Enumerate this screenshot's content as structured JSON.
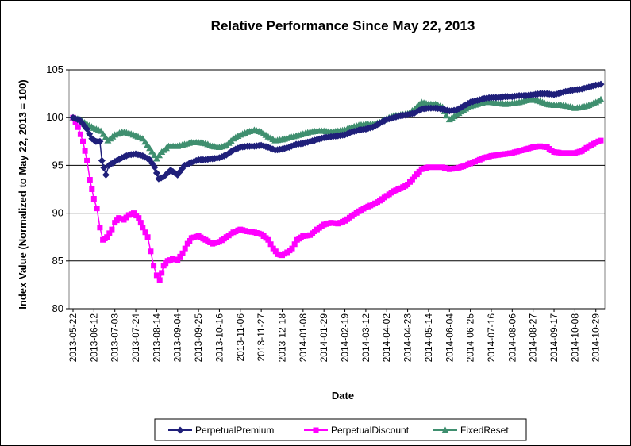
{
  "chart_data": {
    "type": "line",
    "title": "Relative Performance Since May 22, 2013",
    "xlabel": "Date",
    "ylabel": "Index Value (Normalized to May 22, 2013 = 100)",
    "ylim": [
      80,
      105
    ],
    "yticks": [
      "80",
      "85",
      "90",
      "95",
      "100",
      "105"
    ],
    "xticks": [
      "2013-05-22",
      "2013-06-12",
      "2013-07-03",
      "2013-07-24",
      "2013-08-14",
      "2013-09-04",
      "2013-09-25",
      "2013-10-16",
      "2013-11-06",
      "2013-11-27",
      "2013-12-18",
      "2014-01-08",
      "2014-01-29",
      "2014-02-19",
      "2014-03-12",
      "2014-04-02",
      "2014-04-23",
      "2014-05-14",
      "2014-06-04",
      "2014-06-25",
      "2014-07-16",
      "2014-08-06",
      "2014-08-27",
      "2014-09-17",
      "2014-10-08",
      "2014-10-29"
    ],
    "grid": "horizontal",
    "legend_position": "bottom",
    "series": [
      {
        "name": "PerpetualPremium",
        "color": "#1f1f7a",
        "marker": "diamond",
        "points": [
          [
            "2013-05-22",
            100
          ],
          [
            "2013-05-29",
            99.7
          ],
          [
            "2013-06-05",
            98.8
          ],
          [
            "2013-06-10",
            97.8
          ],
          [
            "2013-06-14",
            97.5
          ],
          [
            "2013-06-18",
            97.5
          ],
          [
            "2013-06-20",
            95.5
          ],
          [
            "2013-06-24",
            94.0
          ],
          [
            "2013-06-27",
            95.0
          ],
          [
            "2013-07-03",
            95.4
          ],
          [
            "2013-07-10",
            95.8
          ],
          [
            "2013-07-17",
            96.1
          ],
          [
            "2013-07-24",
            96.2
          ],
          [
            "2013-07-31",
            96.0
          ],
          [
            "2013-08-07",
            95.6
          ],
          [
            "2013-08-12",
            94.8
          ],
          [
            "2013-08-16",
            93.6
          ],
          [
            "2013-08-21",
            93.8
          ],
          [
            "2013-08-28",
            94.5
          ],
          [
            "2013-09-04",
            94.0
          ],
          [
            "2013-09-11",
            95.0
          ],
          [
            "2013-09-18",
            95.3
          ],
          [
            "2013-09-25",
            95.6
          ],
          [
            "2013-10-02",
            95.6
          ],
          [
            "2013-10-09",
            95.7
          ],
          [
            "2013-10-16",
            95.8
          ],
          [
            "2013-10-23",
            96.1
          ],
          [
            "2013-10-30",
            96.6
          ],
          [
            "2013-11-06",
            96.9
          ],
          [
            "2013-11-13",
            97.0
          ],
          [
            "2013-11-20",
            97.0
          ],
          [
            "2013-11-27",
            97.1
          ],
          [
            "2013-12-04",
            96.9
          ],
          [
            "2013-12-11",
            96.6
          ],
          [
            "2013-12-18",
            96.7
          ],
          [
            "2013-12-25",
            96.9
          ],
          [
            "2014-01-01",
            97.2
          ],
          [
            "2014-01-08",
            97.3
          ],
          [
            "2014-01-15",
            97.5
          ],
          [
            "2014-01-22",
            97.7
          ],
          [
            "2014-01-29",
            97.9
          ],
          [
            "2014-02-05",
            98.0
          ],
          [
            "2014-02-12",
            98.1
          ],
          [
            "2014-02-19",
            98.2
          ],
          [
            "2014-02-26",
            98.5
          ],
          [
            "2014-03-05",
            98.7
          ],
          [
            "2014-03-12",
            98.8
          ],
          [
            "2014-03-19",
            99.0
          ],
          [
            "2014-03-26",
            99.4
          ],
          [
            "2014-04-02",
            99.8
          ],
          [
            "2014-04-09",
            100.0
          ],
          [
            "2014-04-16",
            100.2
          ],
          [
            "2014-04-23",
            100.3
          ],
          [
            "2014-04-30",
            100.5
          ],
          [
            "2014-05-07",
            100.9
          ],
          [
            "2014-05-14",
            101.0
          ],
          [
            "2014-05-21",
            101.0
          ],
          [
            "2014-05-28",
            100.9
          ],
          [
            "2014-06-04",
            100.7
          ],
          [
            "2014-06-11",
            100.8
          ],
          [
            "2014-06-18",
            101.2
          ],
          [
            "2014-06-25",
            101.6
          ],
          [
            "2014-07-02",
            101.8
          ],
          [
            "2014-07-09",
            102.0
          ],
          [
            "2014-07-16",
            102.1
          ],
          [
            "2014-07-23",
            102.1
          ],
          [
            "2014-07-30",
            102.2
          ],
          [
            "2014-08-06",
            102.2
          ],
          [
            "2014-08-13",
            102.3
          ],
          [
            "2014-08-20",
            102.3
          ],
          [
            "2014-08-27",
            102.4
          ],
          [
            "2014-09-03",
            102.5
          ],
          [
            "2014-09-10",
            102.5
          ],
          [
            "2014-09-17",
            102.4
          ],
          [
            "2014-09-24",
            102.6
          ],
          [
            "2014-10-01",
            102.8
          ],
          [
            "2014-10-08",
            102.9
          ],
          [
            "2014-10-15",
            103.0
          ],
          [
            "2014-10-22",
            103.2
          ],
          [
            "2014-10-29",
            103.4
          ],
          [
            "2014-11-03",
            103.5
          ]
        ]
      },
      {
        "name": "PerpetualDiscount",
        "color": "#ff00ff",
        "marker": "square",
        "points": [
          [
            "2013-05-22",
            100
          ],
          [
            "2013-05-27",
            99.0
          ],
          [
            "2013-06-01",
            97.5
          ],
          [
            "2013-06-05",
            95.5
          ],
          [
            "2013-06-08",
            93.5
          ],
          [
            "2013-06-12",
            91.5
          ],
          [
            "2013-06-15",
            90.5
          ],
          [
            "2013-06-18",
            88.5
          ],
          [
            "2013-06-21",
            87.2
          ],
          [
            "2013-06-25",
            87.5
          ],
          [
            "2013-06-30",
            88.3
          ],
          [
            "2013-07-03",
            89.0
          ],
          [
            "2013-07-07",
            89.5
          ],
          [
            "2013-07-12",
            89.3
          ],
          [
            "2013-07-17",
            89.8
          ],
          [
            "2013-07-22",
            90.0
          ],
          [
            "2013-07-27",
            89.5
          ],
          [
            "2013-07-31",
            88.5
          ],
          [
            "2013-08-05",
            87.5
          ],
          [
            "2013-08-08",
            86.0
          ],
          [
            "2013-08-11",
            84.5
          ],
          [
            "2013-08-14",
            83.5
          ],
          [
            "2013-08-17",
            83.0
          ],
          [
            "2013-08-21",
            84.5
          ],
          [
            "2013-08-25",
            85.0
          ],
          [
            "2013-08-30",
            85.2
          ],
          [
            "2013-09-04",
            85.1
          ],
          [
            "2013-09-09",
            85.8
          ],
          [
            "2013-09-14",
            86.8
          ],
          [
            "2013-09-18",
            87.4
          ],
          [
            "2013-09-25",
            87.6
          ],
          [
            "2013-10-02",
            87.2
          ],
          [
            "2013-10-09",
            86.8
          ],
          [
            "2013-10-16",
            87.0
          ],
          [
            "2013-10-23",
            87.5
          ],
          [
            "2013-10-30",
            88.0
          ],
          [
            "2013-11-06",
            88.3
          ],
          [
            "2013-11-13",
            88.1
          ],
          [
            "2013-11-20",
            88.0
          ],
          [
            "2013-11-27",
            87.8
          ],
          [
            "2013-12-04",
            87.2
          ],
          [
            "2013-12-09",
            86.3
          ],
          [
            "2013-12-14",
            85.7
          ],
          [
            "2013-12-18",
            85.6
          ],
          [
            "2013-12-23",
            85.9
          ],
          [
            "2013-12-28",
            86.3
          ],
          [
            "2014-01-02",
            87.2
          ],
          [
            "2014-01-08",
            87.6
          ],
          [
            "2014-01-15",
            87.7
          ],
          [
            "2014-01-22",
            88.3
          ],
          [
            "2014-01-29",
            88.8
          ],
          [
            "2014-02-05",
            89.0
          ],
          [
            "2014-02-12",
            88.9
          ],
          [
            "2014-02-19",
            89.2
          ],
          [
            "2014-02-26",
            89.7
          ],
          [
            "2014-03-05",
            90.2
          ],
          [
            "2014-03-12",
            90.6
          ],
          [
            "2014-03-19",
            90.9
          ],
          [
            "2014-03-26",
            91.3
          ],
          [
            "2014-04-02",
            91.8
          ],
          [
            "2014-04-09",
            92.3
          ],
          [
            "2014-04-16",
            92.6
          ],
          [
            "2014-04-23",
            93.0
          ],
          [
            "2014-04-30",
            93.8
          ],
          [
            "2014-05-07",
            94.6
          ],
          [
            "2014-05-14",
            94.8
          ],
          [
            "2014-05-21",
            94.8
          ],
          [
            "2014-05-28",
            94.8
          ],
          [
            "2014-06-04",
            94.6
          ],
          [
            "2014-06-11",
            94.7
          ],
          [
            "2014-06-18",
            94.9
          ],
          [
            "2014-06-25",
            95.2
          ],
          [
            "2014-07-02",
            95.5
          ],
          [
            "2014-07-09",
            95.8
          ],
          [
            "2014-07-16",
            96.0
          ],
          [
            "2014-07-23",
            96.1
          ],
          [
            "2014-07-30",
            96.2
          ],
          [
            "2014-08-06",
            96.3
          ],
          [
            "2014-08-13",
            96.5
          ],
          [
            "2014-08-20",
            96.7
          ],
          [
            "2014-08-27",
            96.9
          ],
          [
            "2014-09-03",
            97.0
          ],
          [
            "2014-09-10",
            96.9
          ],
          [
            "2014-09-17",
            96.4
          ],
          [
            "2014-09-24",
            96.3
          ],
          [
            "2014-10-01",
            96.3
          ],
          [
            "2014-10-08",
            96.3
          ],
          [
            "2014-10-15",
            96.5
          ],
          [
            "2014-10-22",
            97.0
          ],
          [
            "2014-10-29",
            97.4
          ],
          [
            "2014-11-03",
            97.6
          ]
        ]
      },
      {
        "name": "FixedReset",
        "color": "#3f8f6f",
        "marker": "triangle",
        "points": [
          [
            "2013-05-22",
            100
          ],
          [
            "2013-05-29",
            99.8
          ],
          [
            "2013-06-05",
            99.3
          ],
          [
            "2013-06-12",
            98.9
          ],
          [
            "2013-06-19",
            98.6
          ],
          [
            "2013-06-26",
            97.6
          ],
          [
            "2013-07-03",
            98.2
          ],
          [
            "2013-07-10",
            98.5
          ],
          [
            "2013-07-17",
            98.4
          ],
          [
            "2013-07-24",
            98.1
          ],
          [
            "2013-07-31",
            97.8
          ],
          [
            "2013-08-07",
            96.8
          ],
          [
            "2013-08-14",
            95.7
          ],
          [
            "2013-08-19",
            96.4
          ],
          [
            "2013-08-26",
            97.0
          ],
          [
            "2013-09-04",
            97.0
          ],
          [
            "2013-09-11",
            97.2
          ],
          [
            "2013-09-18",
            97.4
          ],
          [
            "2013-09-25",
            97.4
          ],
          [
            "2013-10-02",
            97.3
          ],
          [
            "2013-10-09",
            97.0
          ],
          [
            "2013-10-16",
            96.9
          ],
          [
            "2013-10-23",
            97.1
          ],
          [
            "2013-10-30",
            97.8
          ],
          [
            "2013-11-06",
            98.2
          ],
          [
            "2013-11-13",
            98.5
          ],
          [
            "2013-11-20",
            98.7
          ],
          [
            "2013-11-27",
            98.5
          ],
          [
            "2013-12-04",
            98.0
          ],
          [
            "2013-12-11",
            97.6
          ],
          [
            "2013-12-18",
            97.7
          ],
          [
            "2013-12-25",
            97.9
          ],
          [
            "2014-01-01",
            98.1
          ],
          [
            "2014-01-08",
            98.3
          ],
          [
            "2014-01-15",
            98.5
          ],
          [
            "2014-01-22",
            98.6
          ],
          [
            "2014-01-29",
            98.6
          ],
          [
            "2014-02-05",
            98.5
          ],
          [
            "2014-02-12",
            98.6
          ],
          [
            "2014-02-19",
            98.7
          ],
          [
            "2014-02-26",
            99.0
          ],
          [
            "2014-03-05",
            99.2
          ],
          [
            "2014-03-12",
            99.3
          ],
          [
            "2014-03-19",
            99.3
          ],
          [
            "2014-03-26",
            99.5
          ],
          [
            "2014-04-02",
            99.9
          ],
          [
            "2014-04-09",
            100.2
          ],
          [
            "2014-04-16",
            100.3
          ],
          [
            "2014-04-23",
            100.4
          ],
          [
            "2014-04-30",
            100.9
          ],
          [
            "2014-05-07",
            101.6
          ],
          [
            "2014-05-14",
            101.4
          ],
          [
            "2014-05-21",
            101.4
          ],
          [
            "2014-05-28",
            101.1
          ],
          [
            "2014-06-01",
            100.2
          ],
          [
            "2014-06-04",
            99.8
          ],
          [
            "2014-06-11",
            100.3
          ],
          [
            "2014-06-18",
            100.8
          ],
          [
            "2014-06-25",
            101.2
          ],
          [
            "2014-07-02",
            101.4
          ],
          [
            "2014-07-09",
            101.6
          ],
          [
            "2014-07-16",
            101.6
          ],
          [
            "2014-07-23",
            101.5
          ],
          [
            "2014-07-30",
            101.4
          ],
          [
            "2014-08-06",
            101.5
          ],
          [
            "2014-08-13",
            101.6
          ],
          [
            "2014-08-20",
            101.8
          ],
          [
            "2014-08-27",
            101.9
          ],
          [
            "2014-09-03",
            101.7
          ],
          [
            "2014-09-10",
            101.4
          ],
          [
            "2014-09-17",
            101.3
          ],
          [
            "2014-09-24",
            101.3
          ],
          [
            "2014-10-01",
            101.2
          ],
          [
            "2014-10-08",
            101.0
          ],
          [
            "2014-10-15",
            101.1
          ],
          [
            "2014-10-22",
            101.3
          ],
          [
            "2014-10-29",
            101.6
          ],
          [
            "2014-11-03",
            101.9
          ]
        ]
      }
    ]
  }
}
